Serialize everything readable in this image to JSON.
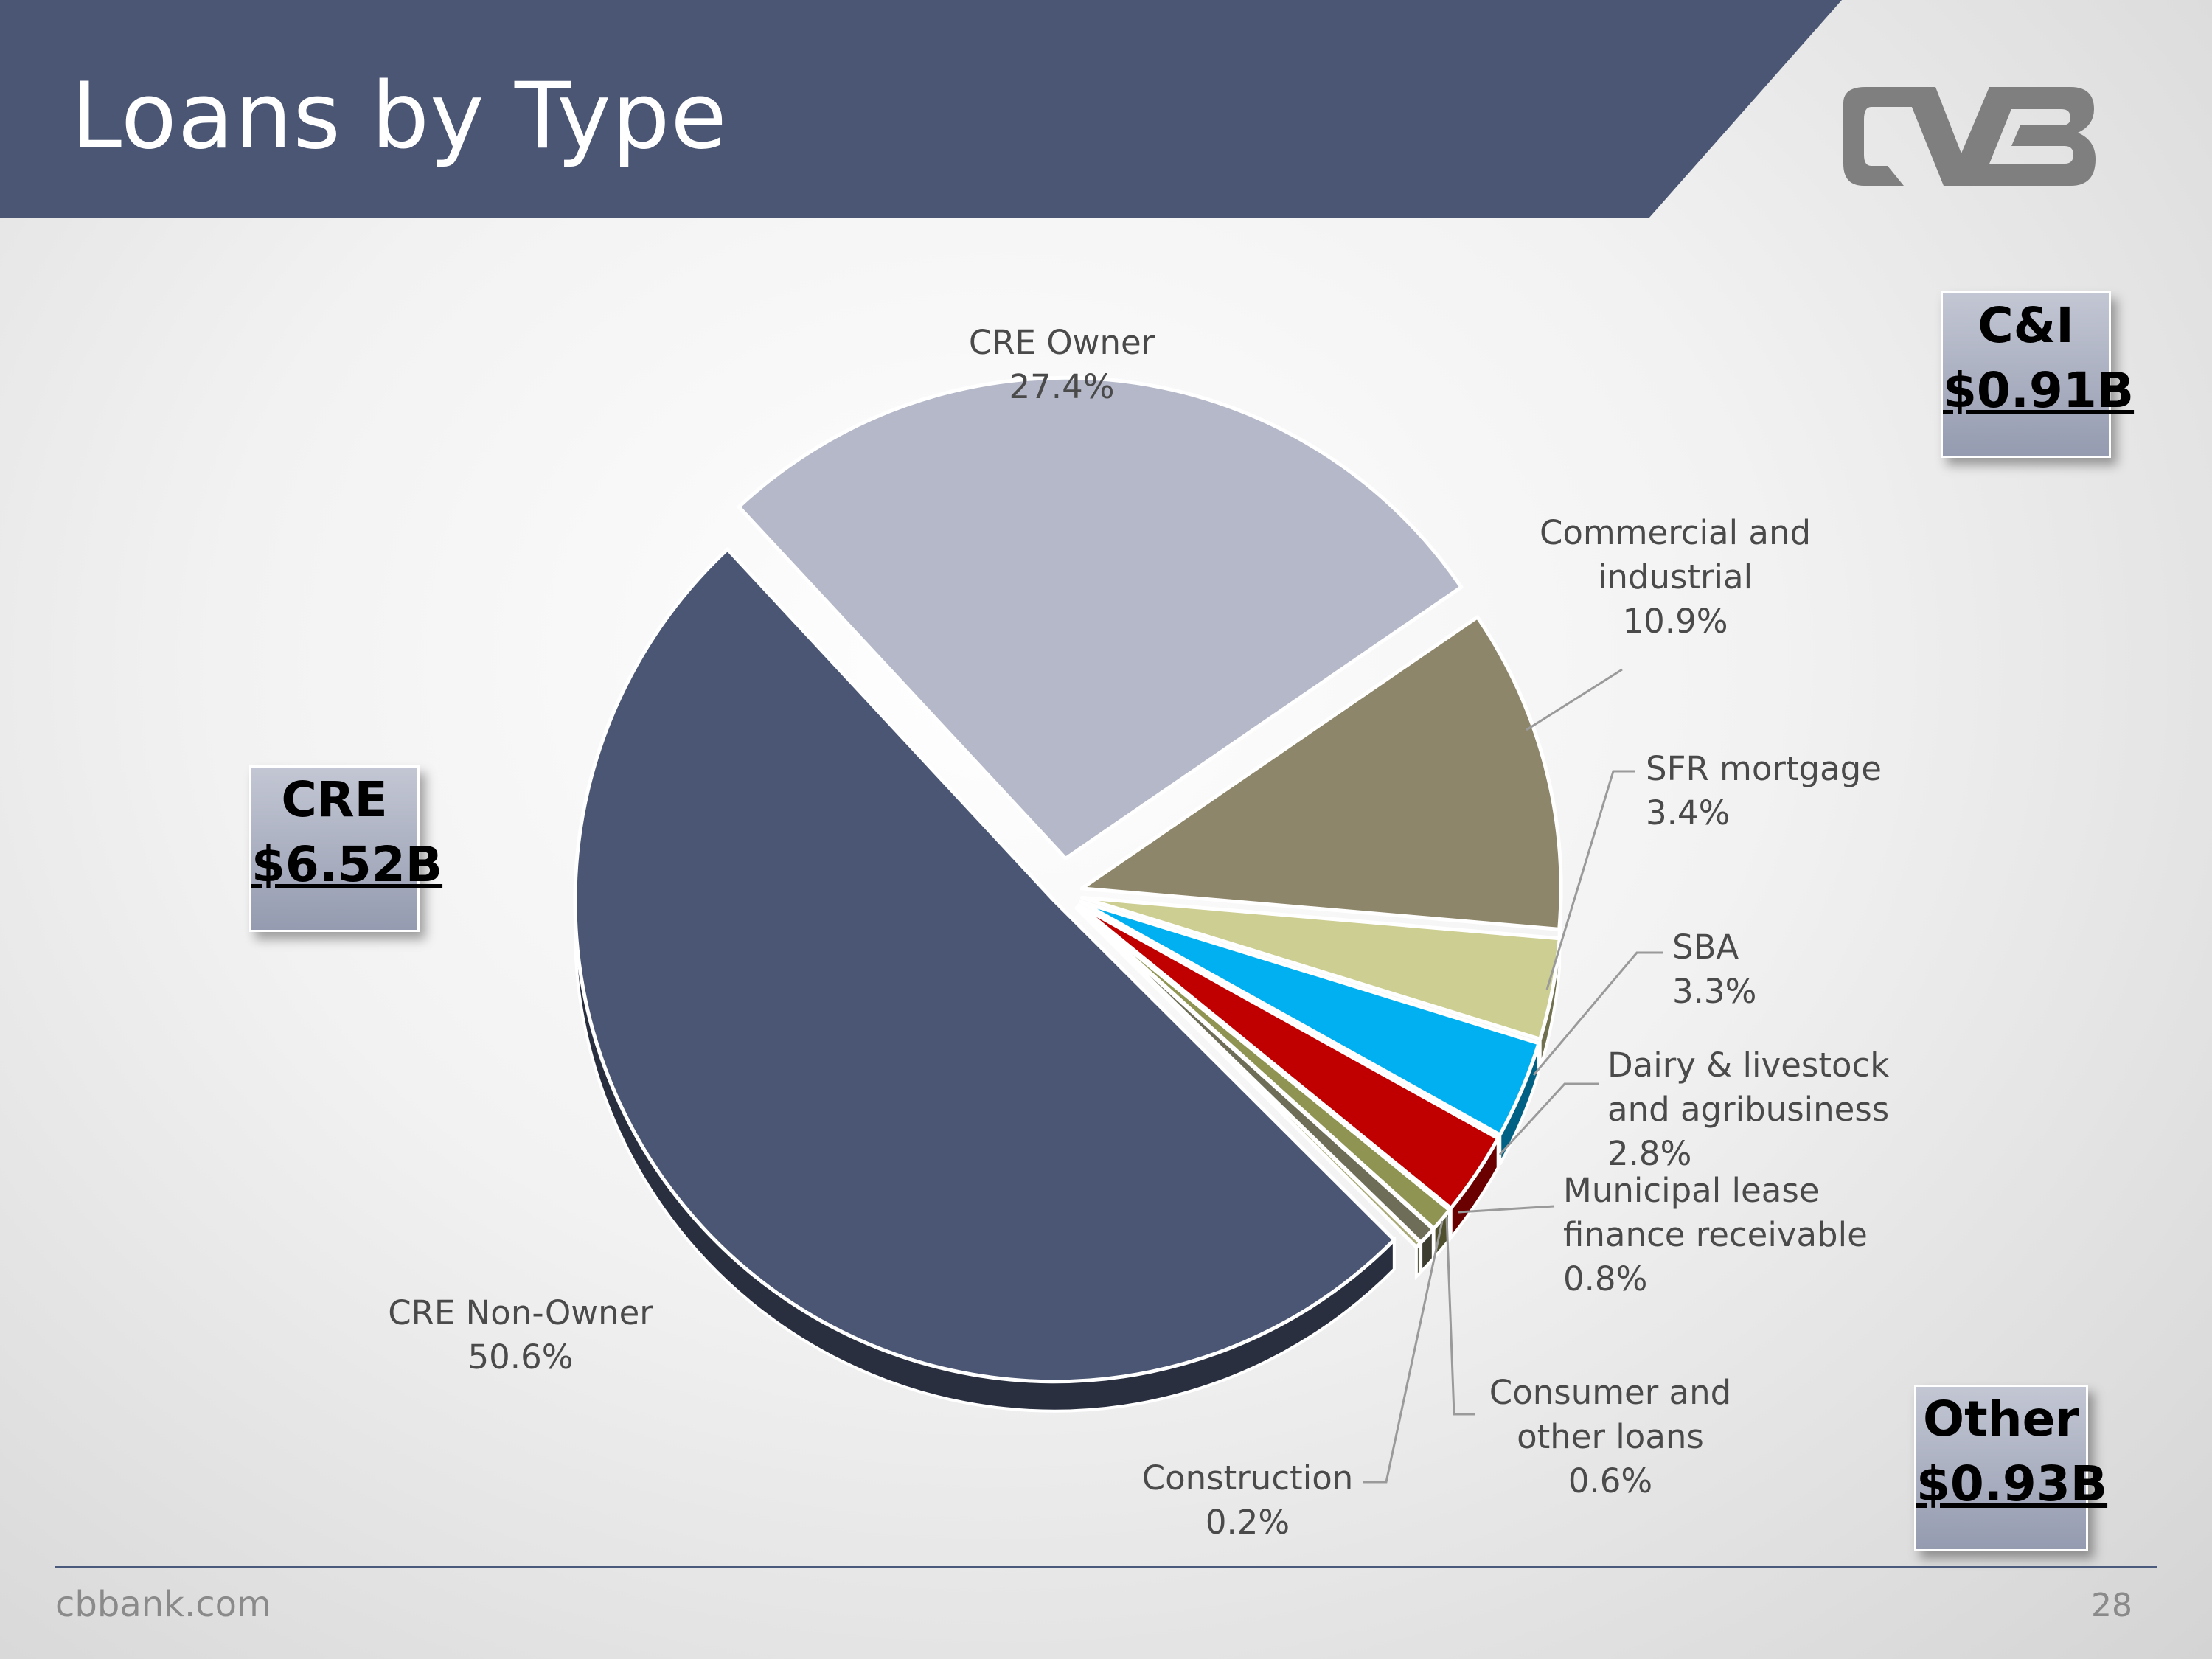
{
  "slide": {
    "title": "Loans by Type",
    "footer_url": "cbbank.com",
    "page_number": "28",
    "logo_text": "CVB"
  },
  "totals": {
    "ci": {
      "label": "C&I",
      "value": "$0.91B"
    },
    "cre": {
      "label": "CRE",
      "value": "$6.52B"
    },
    "other": {
      "label": "Other",
      "value": "$0.93B"
    }
  },
  "colors": {
    "banner": "#4a5673",
    "footer_rule": "#4a5a7c"
  },
  "chart_data": {
    "type": "pie",
    "exploded": true,
    "slices": [
      {
        "label": [
          "CRE Owner"
        ],
        "value": 27.4,
        "display": "27.4%",
        "color": "#b4b8c8"
      },
      {
        "label": [
          "Commercial and",
          "industrial"
        ],
        "value": 10.9,
        "display": "10.9%",
        "color": "#8e866a"
      },
      {
        "label": [
          "SFR mortgage"
        ],
        "value": 3.4,
        "display": "3.4%",
        "color": "#cdce91"
      },
      {
        "label": [
          "SBA"
        ],
        "value": 3.3,
        "display": "3.3%",
        "color": "#00b0f0"
      },
      {
        "label": [
          "Dairy & livestock",
          "and agribusiness"
        ],
        "value": 2.8,
        "display": "2.8%",
        "color": "#c00000"
      },
      {
        "label": [
          "Municipal lease",
          "finance receivable"
        ],
        "value": 0.8,
        "display": "0.8%",
        "color": "#8f9453"
      },
      {
        "label": [
          "Consumer and",
          "other loans"
        ],
        "value": 0.6,
        "display": "0.6%",
        "color": "#6e6e58"
      },
      {
        "label": [
          "Construction"
        ],
        "value": 0.2,
        "display": "0.2%",
        "color": "#a9a978"
      },
      {
        "label": [
          "CRE Non-Owner"
        ],
        "value": 50.6,
        "display": "50.6%",
        "color": "#4a5673"
      }
    ]
  }
}
